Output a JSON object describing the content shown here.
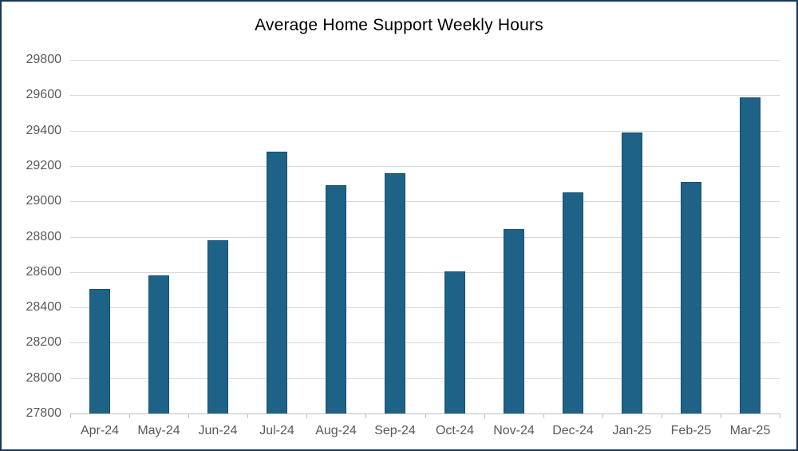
{
  "chart_data": {
    "type": "bar",
    "title": "Average Home Support Weekly Hours",
    "categories": [
      "Apr-24",
      "May-24",
      "Jun-24",
      "Jul-24",
      "Aug-24",
      "Sep-24",
      "Oct-24",
      "Nov-24",
      "Dec-24",
      "Jan-25",
      "Feb-25",
      "Mar-25"
    ],
    "values": [
      28505,
      28580,
      28780,
      29280,
      29090,
      29160,
      28605,
      28845,
      29050,
      29390,
      29110,
      29590
    ],
    "xlabel": "",
    "ylabel": "",
    "ylim": [
      27800,
      29800
    ],
    "ytick_step": 200,
    "ytick_labels": [
      "27800",
      "28000",
      "28200",
      "28400",
      "28600",
      "28800",
      "29000",
      "29200",
      "29400",
      "29600",
      "29800"
    ],
    "grid": true,
    "legend_position": "none",
    "colors": {
      "bar_fill": "#1F6288",
      "bar_border": "#174F6E",
      "gridline": "#D9D9D9",
      "axis_line": "#BFBFBF",
      "tick_label": "#595959",
      "title": "#000000",
      "frame_border": "#17375E",
      "background": "#FFFFFF"
    }
  }
}
